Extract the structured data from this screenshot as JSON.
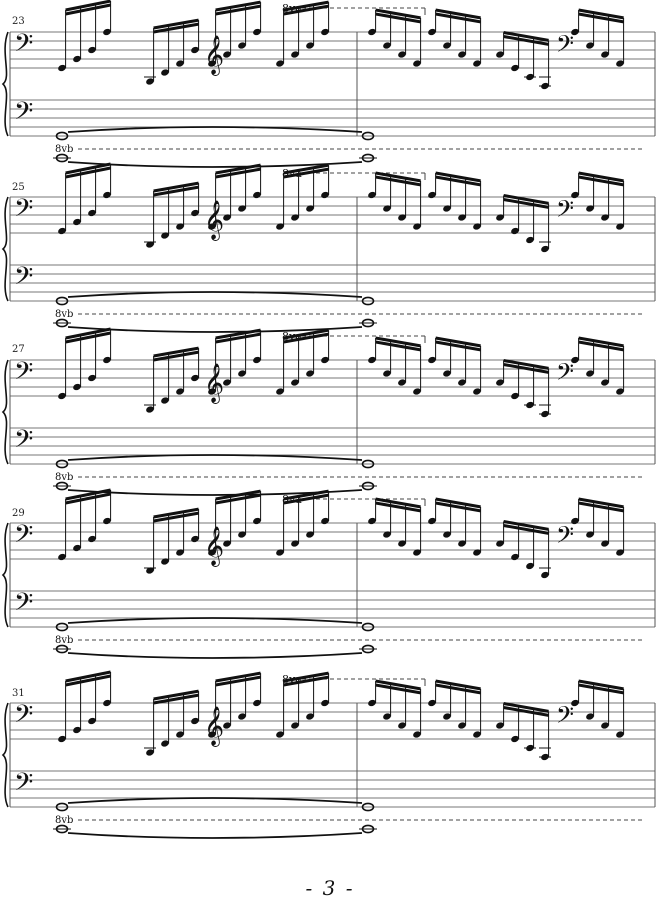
{
  "systems": [
    {
      "measure_number": "23",
      "ottava_top": "8va",
      "ottava_bottom": "8vb"
    },
    {
      "measure_number": "25",
      "ottava_top": "8va",
      "ottava_bottom": "8vb"
    },
    {
      "measure_number": "27",
      "ottava_top": "8va",
      "ottava_bottom": "8vb"
    },
    {
      "measure_number": "29",
      "ottava_top": "8va",
      "ottava_bottom": "8vb"
    },
    {
      "measure_number": "31",
      "ottava_top": "8va",
      "ottava_bottom": "8vb"
    }
  ],
  "page_number": "- 3 -",
  "colors": {
    "ink": "#111111",
    "staff_lines": "#777777"
  }
}
